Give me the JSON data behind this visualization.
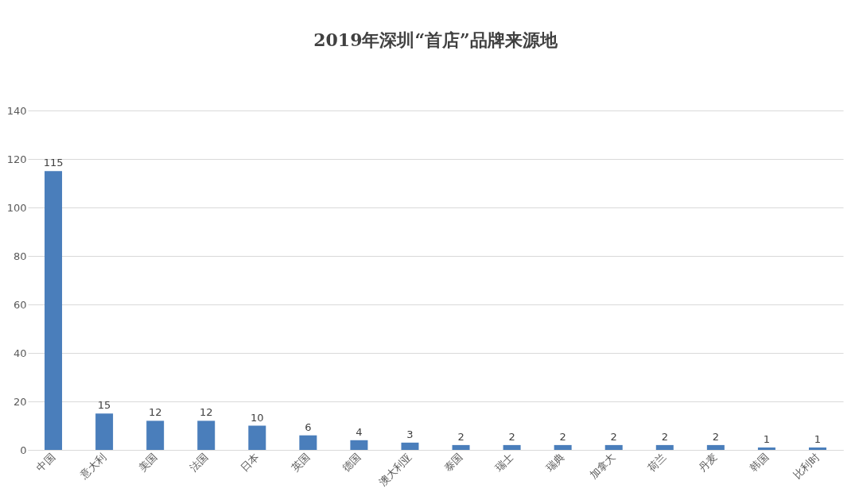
{
  "chart_data": {
    "type": "bar",
    "title": "2019年深圳“首店”品牌来源地",
    "categories": [
      "中国",
      "意大利",
      "美国",
      "法国",
      "日本",
      "英国",
      "德国",
      "澳大利亚",
      "泰国",
      "瑞士",
      "瑞典",
      "加拿大",
      "荷兰",
      "丹麦",
      "韩国",
      "比利时"
    ],
    "values": [
      115,
      15,
      12,
      12,
      10,
      6,
      4,
      3,
      2,
      2,
      2,
      2,
      2,
      2,
      1,
      1
    ],
    "color": "#4a7ebb",
    "ylim": [
      0,
      140
    ],
    "yticks": [
      0,
      20,
      40,
      60,
      80,
      100,
      120,
      140
    ],
    "grid": "y",
    "data_labels": true
  }
}
